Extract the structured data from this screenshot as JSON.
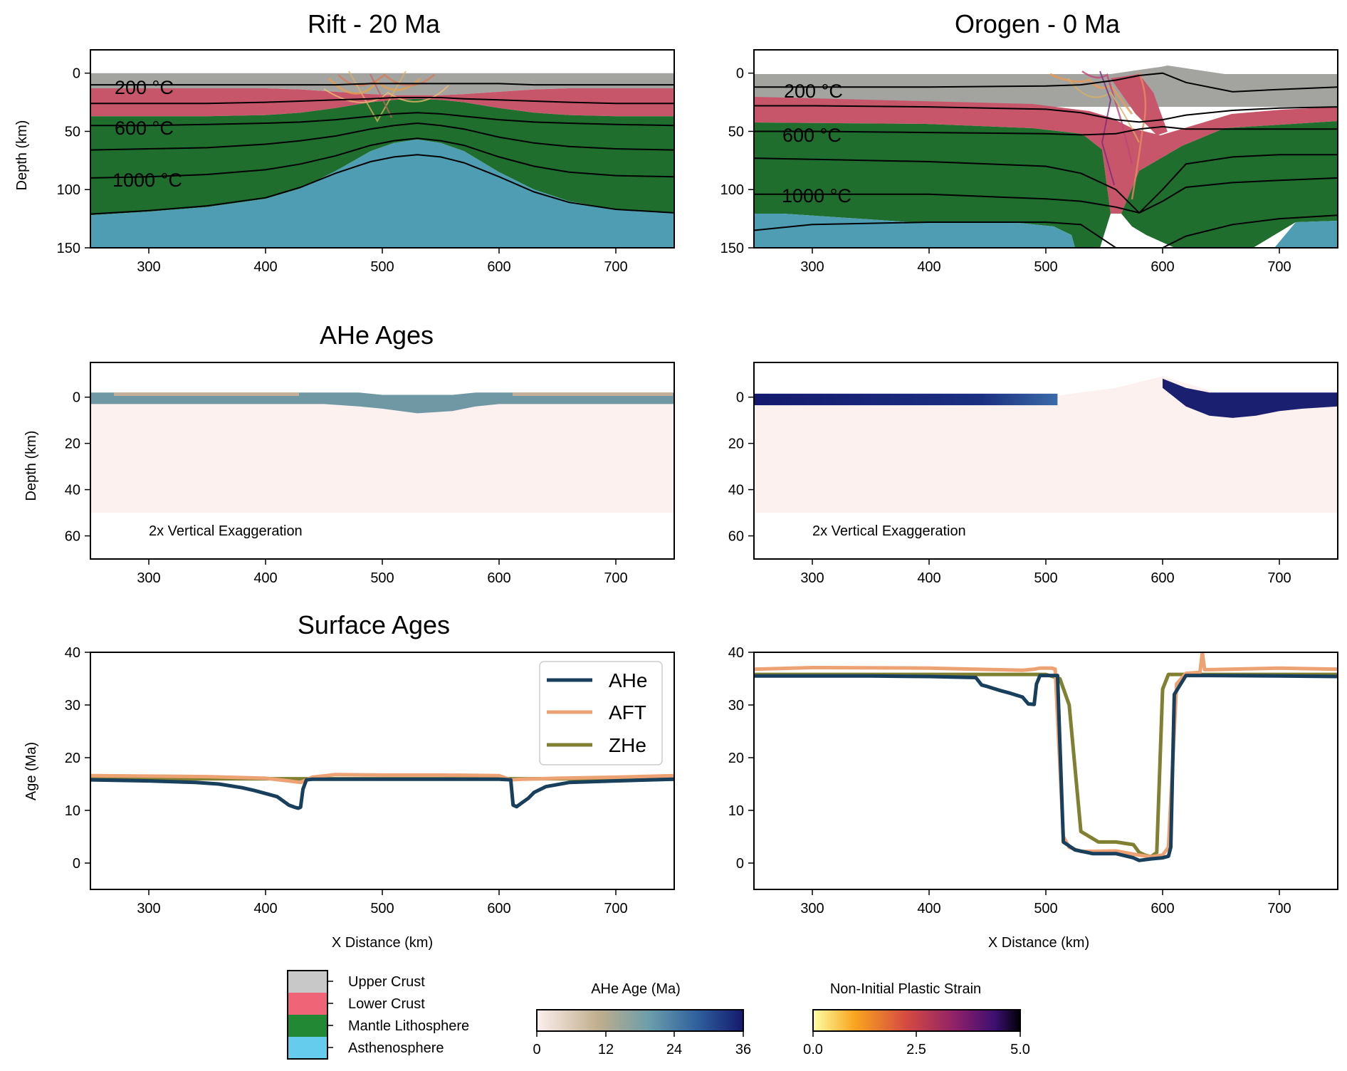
{
  "figure": {
    "titles": {
      "rift": "Rift - 20 Ma",
      "orogen": "Orogen - 0 Ma",
      "ahe": "AHe Ages",
      "surface": "Surface Ages"
    },
    "labels": {
      "depth": "Depth (km)",
      "age": "Age (Ma)",
      "x_distance": "X Distance (km)",
      "exaggeration": "2x Vertical Exaggeration"
    },
    "isotherm_labels": [
      "200 °C",
      "600 °C",
      "1000 °C"
    ],
    "x_ticks": [
      "300",
      "400",
      "500",
      "600",
      "700"
    ],
    "depth_ticks_model": [
      "0",
      "50",
      "100",
      "150"
    ],
    "depth_ticks_ahe": [
      "0",
      "20",
      "40",
      "60"
    ],
    "age_ticks": [
      "0",
      "10",
      "20",
      "30",
      "40"
    ]
  },
  "colors": {
    "upper_crust": "#a3a3a0",
    "lower_crust": "#c8566b",
    "mantle_lithosphere": "#1f6e2d",
    "asthenosphere": "#4f9db3",
    "ahe_line": "#183f5c",
    "aft_line": "#eda274",
    "zhe_line": "#7f8031",
    "legend_upper_crust": "#c8c8c8",
    "legend_lower_crust": "#f06478",
    "legend_mantle": "#228833",
    "legend_asthenosphere": "#66ccee"
  },
  "legends": {
    "materials": [
      {
        "label": "Upper Crust",
        "color": "#c8c8c8"
      },
      {
        "label": "Lower Crust",
        "color": "#f06478"
      },
      {
        "label": "Mantle Lithosphere",
        "color": "#228833"
      },
      {
        "label": "Asthenosphere",
        "color": "#66ccee"
      }
    ],
    "ahe_colorbar": {
      "title": "AHe Age (Ma)",
      "ticks": [
        "0",
        "12",
        "24",
        "36"
      ]
    },
    "strain_colorbar": {
      "title": "Non-Initial Plastic Strain",
      "ticks": [
        "0.0",
        "2.5",
        "5.0"
      ]
    }
  },
  "chart_data": [
    {
      "type": "area",
      "panel": "rift-model",
      "title": "Rift - 20 Ma",
      "xlabel": "",
      "ylabel": "Depth (km)",
      "xlim": [
        250,
        750
      ],
      "ylim": [
        150,
        -20
      ],
      "boundaries": {
        "x": [
          250,
          300,
          350,
          400,
          430,
          460,
          490,
          510,
          530,
          550,
          570,
          600,
          630,
          660,
          700,
          750
        ],
        "upper_crust_base": [
          13,
          13,
          13,
          13,
          14,
          16,
          18,
          19,
          19,
          19,
          18,
          16,
          14,
          13,
          13,
          13
        ],
        "lower_crust_base": [
          37,
          37,
          37,
          36,
          34,
          30,
          25,
          23,
          22,
          23,
          25,
          30,
          34,
          36,
          37,
          37
        ],
        "lithosphere_base": [
          122,
          119,
          115,
          108,
          99,
          84,
          67,
          60,
          57,
          60,
          67,
          85,
          100,
          110,
          117,
          120
        ]
      },
      "isotherms": {
        "x": [
          250,
          300,
          350,
          400,
          430,
          460,
          490,
          510,
          530,
          550,
          570,
          600,
          630,
          660,
          700,
          750
        ],
        "series": [
          {
            "label": "200 °C",
            "values": [
              10,
              10,
              10,
              10,
              10,
              10,
              9,
              9,
              9,
              9,
              9,
              9,
              10,
              10,
              10,
              10
            ]
          },
          {
            "values": [
              26,
              26,
              26,
              25,
              24,
              23,
              22,
              21,
              21,
              21,
              22,
              23,
              24,
              25,
              26,
              26
            ]
          },
          {
            "label": "600 °C",
            "values": [
              45,
              45,
              44,
              43,
              42,
              40,
              37,
              35,
              34,
              35,
              37,
              40,
              42,
              43,
              44,
              45
            ]
          },
          {
            "values": [
              66,
              65,
              64,
              61,
              58,
              54,
              48,
              45,
              43,
              45,
              48,
              55,
              60,
              63,
              65,
              66
            ]
          },
          {
            "label": "1000 °C",
            "values": [
              90,
              89,
              87,
              83,
              78,
              71,
              62,
              58,
              56,
              58,
              62,
              72,
              80,
              85,
              88,
              89
            ]
          },
          {
            "values": [
              121,
              118,
              114,
              107,
              98,
              86,
              76,
              72,
              70,
              72,
              77,
              89,
              102,
              111,
              117,
              120
            ]
          }
        ]
      }
    },
    {
      "type": "area",
      "panel": "orogen-model",
      "title": "Orogen - 0 Ma",
      "xlabel": "",
      "ylabel": "",
      "xlim": [
        250,
        750
      ],
      "ylim": [
        150,
        -20
      ],
      "topography": {
        "x": [
          250,
          500,
          560,
          590,
          600,
          620,
          650,
          700,
          750
        ],
        "values": [
          0,
          0,
          -3,
          -6,
          -7,
          -4,
          -1,
          0,
          0
        ]
      },
      "isotherms": {
        "x": [
          250,
          300,
          400,
          500,
          530,
          560,
          580,
          600,
          620,
          660,
          700,
          750
        ],
        "series": [
          {
            "label": "200 °C",
            "values": [
              12,
              12,
              12,
              11,
              10,
              6,
              2,
              0,
              8,
              16,
              14,
              12
            ]
          },
          {
            "values": [
              28,
              28,
              29,
              31,
              34,
              40,
              42,
              40,
              36,
              32,
              30,
              29
            ]
          },
          {
            "label": "600 °C",
            "values": [
              50,
              50,
              51,
              52,
              53,
              52,
              48,
              46,
              48,
              48,
              48,
              48
            ]
          },
          {
            "values": [
              73,
              74,
              76,
              80,
              86,
              100,
              120,
              100,
              78,
              72,
              70,
              70
            ]
          },
          {
            "label": "1000 °C",
            "values": [
              104,
              104,
              104,
              108,
              110,
              115,
              120,
              110,
              98,
              94,
              92,
              90
            ]
          },
          {
            "values": [
              135,
              130,
              128,
              128,
              130,
              150,
              150,
              150,
              140,
              130,
              125,
              122
            ]
          }
        ]
      }
    },
    {
      "type": "heatmap",
      "panel": "rift-ahe",
      "title": "AHe Ages",
      "xlabel": "",
      "ylabel": "Depth (km)",
      "xlim": [
        250,
        750
      ],
      "ylim": [
        70,
        -15
      ],
      "note": "2x Vertical Exaggeration",
      "surface_band": {
        "x": [
          250,
          300,
          350,
          400,
          430,
          450,
          480,
          500,
          530,
          560,
          580,
          600,
          640,
          700,
          750
        ],
        "top": [
          -2,
          -2,
          -2,
          -2,
          -2,
          -2,
          -2,
          -1,
          -1,
          -1,
          -2,
          -2,
          -2,
          -2,
          -2
        ],
        "bottom": [
          3,
          3,
          3,
          3,
          3,
          3,
          4,
          5,
          7,
          6,
          4,
          3,
          3,
          3,
          3
        ]
      },
      "band_age_ma": 16,
      "background_age_ma": 0,
      "domain_depth_km": 50
    },
    {
      "type": "heatmap",
      "panel": "orogen-ahe",
      "title": "",
      "xlabel": "",
      "ylabel": "",
      "xlim": [
        250,
        750
      ],
      "ylim": [
        70,
        -15
      ],
      "note": "2x Vertical Exaggeration",
      "left_band": {
        "x": [
          250,
          510
        ],
        "age_ma": 36
      },
      "right_band": {
        "x": [
          600,
          620,
          640,
          660,
          680,
          700,
          720,
          750
        ],
        "top": [
          -8,
          -4,
          -2,
          -2,
          -2,
          -2,
          -2,
          -2
        ],
        "bottom": [
          -4,
          4,
          8,
          9,
          8,
          6,
          5,
          4
        ]
      },
      "band_age_ma": 36,
      "background_age_ma": 0,
      "domain_depth_km": 50
    },
    {
      "type": "line",
      "panel": "rift-surface",
      "title": "Surface Ages",
      "xlabel": "X Distance (km)",
      "ylabel": "Age (Ma)",
      "xlim": [
        250,
        750
      ],
      "ylim": [
        -5,
        40
      ],
      "legend": "top-right",
      "series": [
        {
          "name": "AHe",
          "x": [
            250,
            300,
            340,
            360,
            380,
            390,
            400,
            410,
            415,
            420,
            425,
            428,
            430,
            432,
            435,
            440,
            500,
            560,
            600,
            610,
            612,
            615,
            620,
            625,
            630,
            640,
            660,
            700,
            750
          ],
          "y": [
            15.8,
            15.6,
            15.3,
            15,
            14.3,
            13.8,
            13.2,
            12.6,
            11.8,
            11,
            10.6,
            10.4,
            10.6,
            14,
            15.8,
            15.9,
            15.9,
            15.9,
            15.9,
            15.8,
            11,
            10.7,
            11.5,
            12.3,
            13.4,
            14.5,
            15.3,
            15.6,
            15.9
          ]
        },
        {
          "name": "AFT",
          "x": [
            250,
            300,
            350,
            400,
            420,
            430,
            440,
            460,
            500,
            550,
            600,
            610,
            620,
            650,
            700,
            750
          ],
          "y": [
            16.6,
            16.5,
            16.4,
            16.1,
            15.6,
            15.3,
            16.3,
            16.8,
            16.7,
            16.7,
            16.6,
            15.8,
            15.9,
            16.1,
            16.3,
            16.6
          ]
        },
        {
          "name": "ZHe",
          "x": [
            250,
            300,
            350,
            400,
            450,
            500,
            550,
            600,
            650,
            700,
            750
          ],
          "y": [
            16,
            16,
            16,
            16,
            16,
            16,
            16,
            16,
            16,
            16,
            16
          ]
        }
      ]
    },
    {
      "type": "line",
      "panel": "orogen-surface",
      "title": "",
      "xlabel": "X Distance (km)",
      "ylabel": "",
      "xlim": [
        250,
        750
      ],
      "ylim": [
        -5,
        40
      ],
      "series": [
        {
          "name": "AHe",
          "x": [
            250,
            300,
            350,
            400,
            440,
            445,
            450,
            460,
            470,
            480,
            485,
            490,
            492,
            495,
            500,
            505,
            510,
            515,
            525,
            540,
            560,
            575,
            580,
            590,
            600,
            605,
            607,
            610,
            620,
            640,
            700,
            750
          ],
          "y": [
            35.5,
            35.5,
            35.5,
            35.4,
            35.2,
            33.8,
            33.5,
            32.8,
            32.2,
            31.5,
            30.2,
            30.1,
            34,
            35.6,
            35.6,
            35.6,
            35.6,
            4,
            2.5,
            1.8,
            1.8,
            1,
            0.5,
            0.8,
            1,
            1.3,
            3,
            32,
            35.6,
            35.6,
            35.5,
            35.4
          ]
        },
        {
          "name": "AFT",
          "x": [
            250,
            300,
            400,
            480,
            490,
            495,
            505,
            508,
            515,
            520,
            530,
            560,
            580,
            590,
            600,
            605,
            612,
            620,
            632,
            634,
            636,
            640,
            700,
            750
          ],
          "y": [
            36.8,
            37.1,
            37,
            36.6,
            36.8,
            37,
            37,
            36.8,
            5,
            3,
            2.2,
            2.3,
            1.5,
            1.2,
            1.5,
            3,
            34,
            36,
            36.2,
            40,
            36.7,
            36.7,
            37,
            36.8
          ]
        },
        {
          "name": "ZHe",
          "x": [
            250,
            300,
            400,
            500,
            512,
            520,
            530,
            545,
            560,
            575,
            580,
            585,
            590,
            595,
            600,
            605,
            620,
            700,
            750
          ],
          "y": [
            35.8,
            35.8,
            35.8,
            35.8,
            35,
            30,
            6,
            4,
            4,
            3.5,
            2,
            1.5,
            1.2,
            2,
            33,
            35.8,
            35.8,
            35.8,
            35.8
          ]
        }
      ]
    }
  ]
}
